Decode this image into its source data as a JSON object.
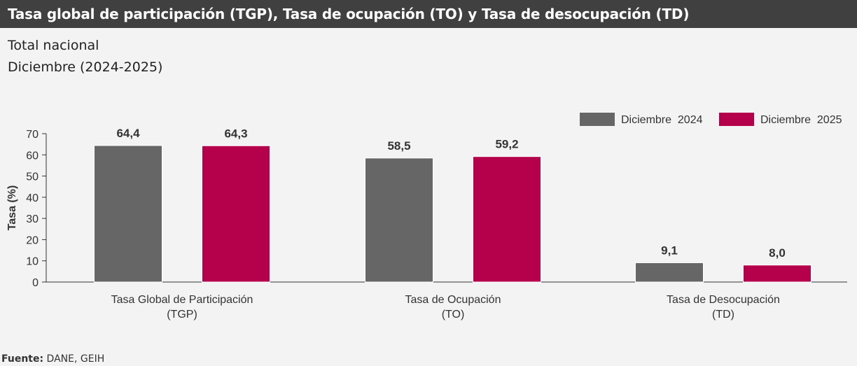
{
  "header": {
    "title": "Tasa global de participación (TGP), Tasa de ocupación (TO) y Tasa de desocupación (TD)",
    "subtitle_line1": "Total nacional",
    "subtitle_line2": "Diciembre (2024-2025)"
  },
  "footer": {
    "source_label": "Fuente:",
    "source_text": "DANE, GEIH"
  },
  "chart_data": {
    "type": "bar",
    "categories": [
      [
        "Tasa Global de Participación",
        "(TGP)"
      ],
      [
        "Tasa de Ocupación",
        "(TO)"
      ],
      [
        "Tasa de Desocupación",
        "(TD)"
      ]
    ],
    "series": [
      {
        "name": "Diciembre  2024",
        "color": "#666666",
        "values": [
          64.4,
          58.5,
          9.1
        ],
        "labels": [
          "64,4",
          "58,5",
          "9,1"
        ]
      },
      {
        "name": "Diciembre  2025",
        "color": "#b5004b",
        "values": [
          64.3,
          59.2,
          8.0
        ],
        "labels": [
          "64,3",
          "59,2",
          "8,0"
        ]
      }
    ],
    "ylabel": "Tasa (%)",
    "ylim": [
      0,
      70
    ],
    "yticks": [
      0,
      10,
      20,
      30,
      40,
      50,
      60,
      70
    ],
    "grid": false,
    "legend_position": "top-right"
  }
}
